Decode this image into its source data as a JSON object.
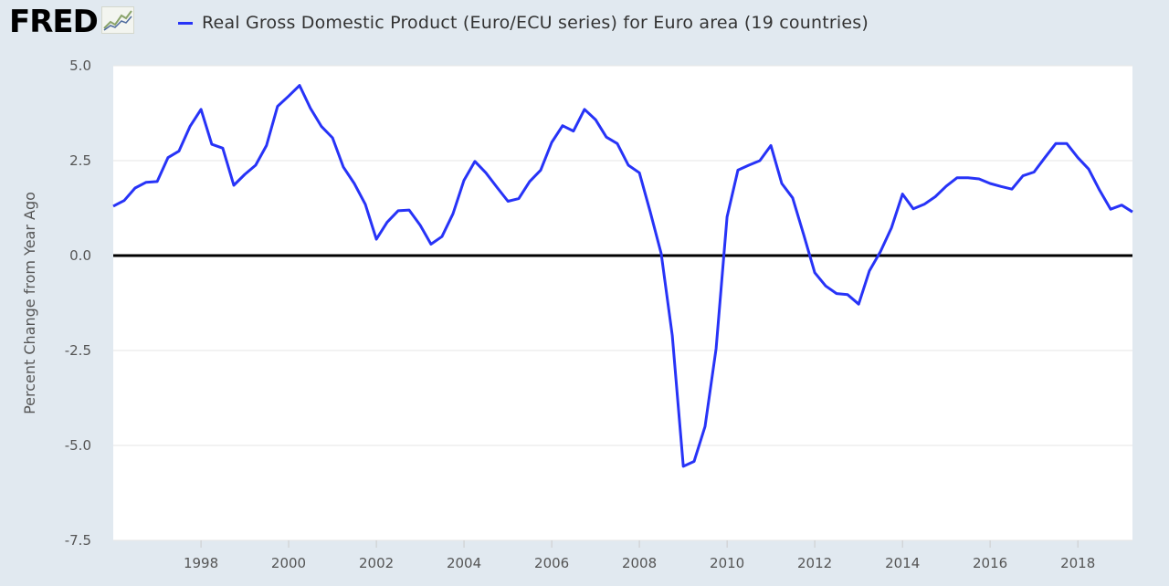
{
  "header": {
    "logo_text": "FRED",
    "logo_icon": "chart-line-icon",
    "series_label": "Real Gross Domestic Product (Euro/ECU series) for Euro area (19 countries)"
  },
  "colors": {
    "series": "#2733f7",
    "zero_line": "#000000",
    "background": "#e1e9f0",
    "plot_background": "#ffffff",
    "grid": "#e6e6e6"
  },
  "chart_data": {
    "type": "line",
    "title": "",
    "xlabel": "",
    "ylabel": "Percent Change from Year Ago",
    "ylim": [
      -7.5,
      5.0
    ],
    "yticks": [
      5.0,
      2.5,
      0.0,
      -2.5,
      -5.0,
      -7.5
    ],
    "ytick_labels": [
      "5.0",
      "2.5",
      "0.0",
      "-2.5",
      "-5.0",
      "-7.5"
    ],
    "xlim": [
      "1996-01-01",
      "2019-04-01"
    ],
    "xticks": [
      "1998",
      "2000",
      "2002",
      "2004",
      "2006",
      "2008",
      "2010",
      "2012",
      "2014",
      "2016",
      "2018"
    ],
    "grid": "horizontal",
    "reference_line": 0.0,
    "series": [
      {
        "name": "Real Gross Domestic Product (Euro/ECU series) for Euro area (19 countries)",
        "x": [
          "1996-01-01",
          "1996-04-01",
          "1996-07-01",
          "1996-10-01",
          "1997-01-01",
          "1997-04-01",
          "1997-07-01",
          "1997-10-01",
          "1998-01-01",
          "1998-04-01",
          "1998-07-01",
          "1998-10-01",
          "1999-01-01",
          "1999-04-01",
          "1999-07-01",
          "1999-10-01",
          "2000-01-01",
          "2000-04-01",
          "2000-07-01",
          "2000-10-01",
          "2001-01-01",
          "2001-04-01",
          "2001-07-01",
          "2001-10-01",
          "2002-01-01",
          "2002-04-01",
          "2002-07-01",
          "2002-10-01",
          "2003-01-01",
          "2003-04-01",
          "2003-07-01",
          "2003-10-01",
          "2004-01-01",
          "2004-04-01",
          "2004-07-01",
          "2004-10-01",
          "2005-01-01",
          "2005-04-01",
          "2005-07-01",
          "2005-10-01",
          "2006-01-01",
          "2006-04-01",
          "2006-07-01",
          "2006-10-01",
          "2007-01-01",
          "2007-04-01",
          "2007-07-01",
          "2007-10-01",
          "2008-01-01",
          "2008-04-01",
          "2008-07-01",
          "2008-10-01",
          "2009-01-01",
          "2009-04-01",
          "2009-07-01",
          "2009-10-01",
          "2010-01-01",
          "2010-04-01",
          "2010-07-01",
          "2010-10-01",
          "2011-01-01",
          "2011-04-01",
          "2011-07-01",
          "2011-10-01",
          "2012-01-01",
          "2012-04-01",
          "2012-07-01",
          "2012-10-01",
          "2013-01-01",
          "2013-04-01",
          "2013-07-01",
          "2013-10-01",
          "2014-01-01",
          "2014-04-01",
          "2014-07-01",
          "2014-10-01",
          "2015-01-01",
          "2015-04-01",
          "2015-07-01",
          "2015-10-01",
          "2016-01-01",
          "2016-04-01",
          "2016-07-01",
          "2016-10-01",
          "2017-01-01",
          "2017-04-01",
          "2017-07-01",
          "2017-10-01",
          "2018-01-01",
          "2018-04-01",
          "2018-07-01",
          "2018-10-01",
          "2019-01-01",
          "2019-04-01"
        ],
        "values": [
          1.3,
          1.45,
          1.78,
          1.93,
          1.95,
          2.58,
          2.75,
          3.4,
          3.85,
          2.93,
          2.83,
          1.85,
          2.14,
          2.38,
          2.9,
          3.93,
          4.2,
          4.48,
          3.88,
          3.4,
          3.1,
          2.33,
          1.9,
          1.35,
          0.43,
          0.88,
          1.18,
          1.2,
          0.8,
          0.3,
          0.5,
          1.1,
          1.98,
          2.48,
          2.18,
          1.8,
          1.43,
          1.5,
          1.95,
          2.25,
          2.98,
          3.42,
          3.28,
          3.85,
          3.58,
          3.12,
          2.95,
          2.38,
          2.18,
          1.15,
          0.05,
          -2.1,
          -5.55,
          -5.42,
          -4.5,
          -2.45,
          1.02,
          2.25,
          2.38,
          2.5,
          2.9,
          1.9,
          1.52,
          0.55,
          -0.45,
          -0.8,
          -1.0,
          -1.03,
          -1.28,
          -0.4,
          0.1,
          0.73,
          1.62,
          1.23,
          1.35,
          1.55,
          1.83,
          2.05,
          2.05,
          2.02,
          1.9,
          1.82,
          1.75,
          2.1,
          2.2,
          2.58,
          2.95,
          2.95,
          2.58,
          2.28,
          1.72,
          1.22,
          1.33,
          1.15
        ]
      }
    ]
  }
}
